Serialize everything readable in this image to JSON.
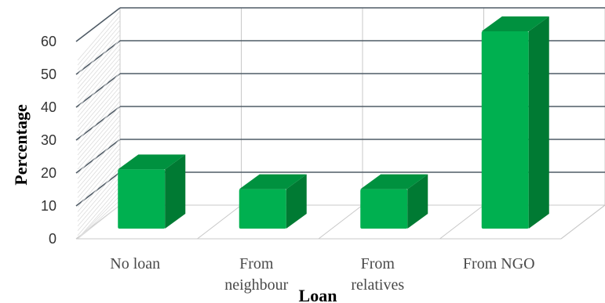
{
  "chart_data": {
    "type": "bar",
    "three_d": true,
    "categories": [
      [
        "No loan"
      ],
      [
        "From",
        "neighbour"
      ],
      [
        "From",
        "relatives"
      ],
      [
        "From NGO"
      ]
    ],
    "values": [
      18,
      12,
      12,
      60
    ],
    "title": "",
    "xlabel": "Loan",
    "ylabel": "Percentage",
    "ylim": [
      0,
      60
    ],
    "ytick_step": 10,
    "yticks": [
      "0",
      "10",
      "20",
      "30",
      "40",
      "50",
      "60"
    ],
    "grid": true,
    "legend": "none",
    "colors": {
      "bar_front": "#00b050",
      "bar_side": "#007a33",
      "bar_top": "#00913f",
      "grid": "#c8c8c8",
      "back_grid": "#4f5b66",
      "tick_text": "#333333"
    }
  }
}
